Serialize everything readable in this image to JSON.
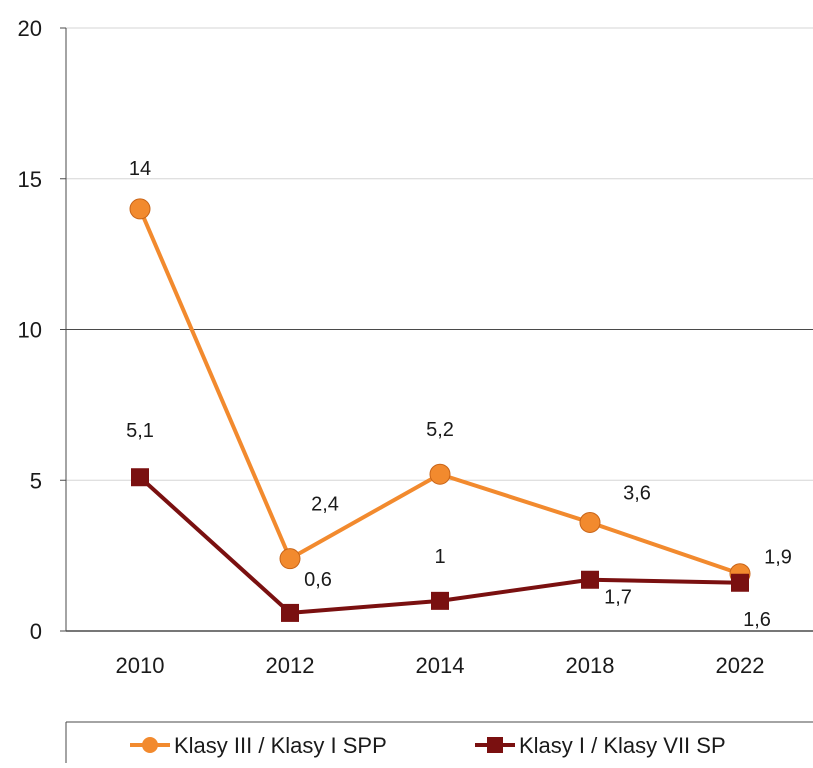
{
  "chart_data": {
    "type": "line",
    "x": [
      "2010",
      "2012",
      "2014",
      "2018",
      "2022"
    ],
    "ylim": [
      0,
      20
    ],
    "yticks": [
      0,
      5,
      10,
      15,
      20
    ],
    "grid": true,
    "legend_position": "bottom",
    "series": [
      {
        "name": "Klasy III / Klasy I SPP",
        "values": [
          14,
          2.4,
          5.2,
          3.6,
          1.9
        ],
        "labels": [
          "14",
          "2,4",
          "5,2",
          "3,6",
          "1,9"
        ],
        "color": "#f28a2e",
        "marker": "circle"
      },
      {
        "name": "Klasy I / Klasy VII SP",
        "values": [
          5.1,
          0.6,
          1,
          1.7,
          1.6
        ],
        "labels": [
          "5,1",
          "0,6",
          "1",
          "1,7",
          "1,6"
        ],
        "color": "#7a1010",
        "marker": "square"
      }
    ]
  }
}
